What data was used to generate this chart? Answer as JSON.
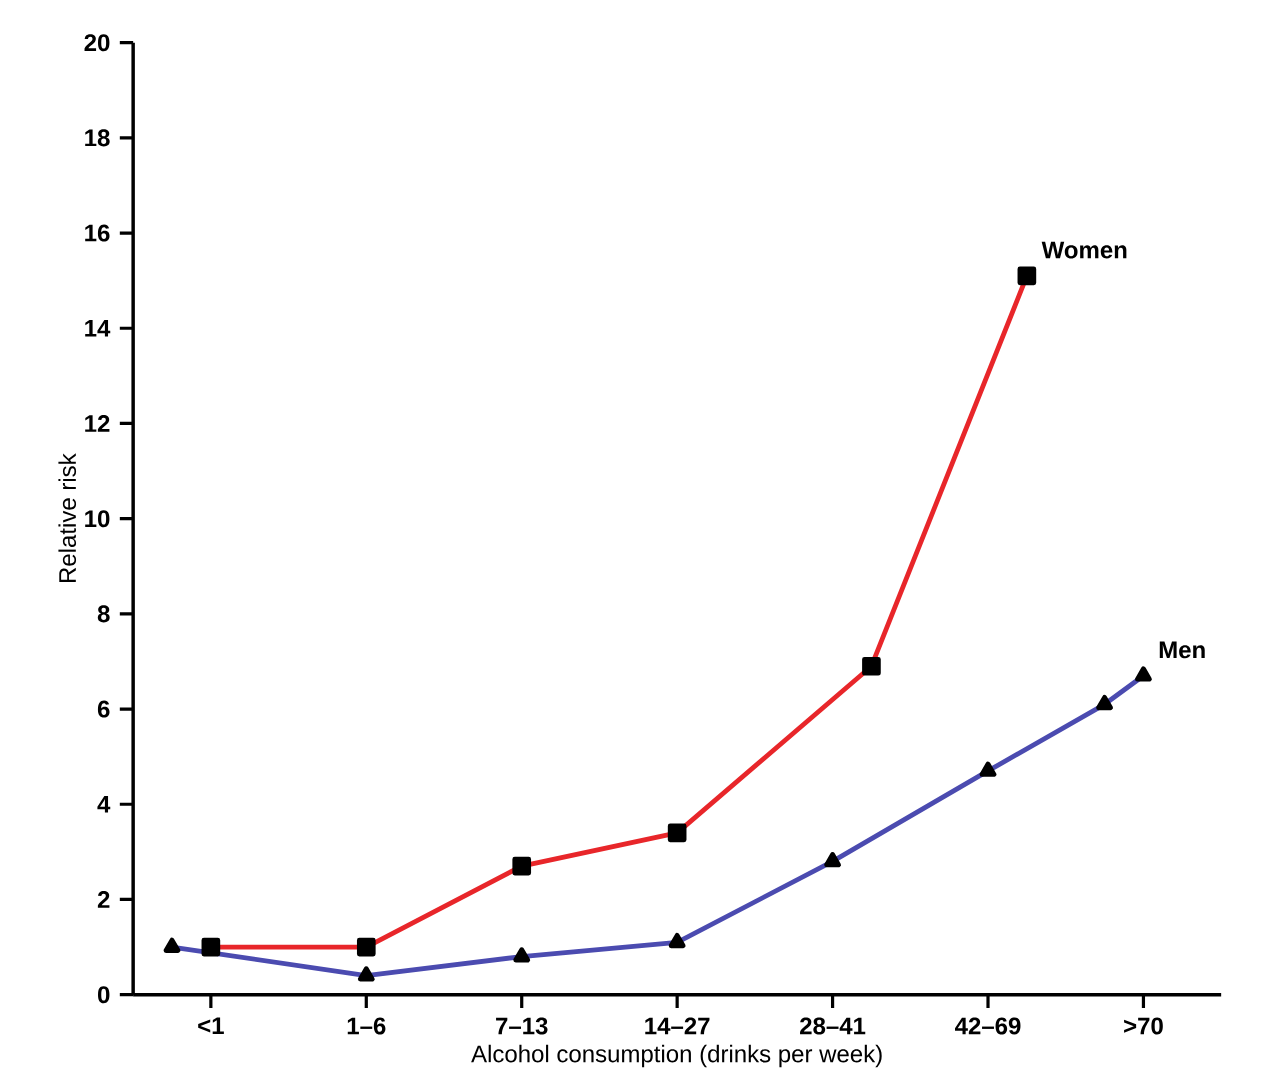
{
  "chart_data": {
    "type": "line",
    "xlabel": "Alcohol consumption (drinks per week)",
    "ylabel": "Relative risk",
    "categories": [
      null,
      "<1",
      null,
      null,
      null,
      "1–6",
      null,
      null,
      null,
      "7–13",
      null,
      null,
      null,
      "14–27",
      null,
      null,
      null,
      "28–41",
      null,
      null,
      null,
      "42–69",
      null,
      null,
      null,
      ">70",
      null
    ],
    "ylim": [
      0,
      20
    ],
    "yticks": [
      0,
      2,
      4,
      6,
      8,
      10,
      12,
      14,
      16,
      18,
      20
    ],
    "line_style": "solid",
    "series": [
      {
        "name": "Women",
        "color": "#e8262a",
        "marker": "square",
        "values": [
          null,
          1.0,
          null,
          null,
          null,
          1.0,
          null,
          null,
          null,
          2.7,
          null,
          null,
          null,
          3.4,
          null,
          null,
          null,
          null,
          6.9,
          null,
          null,
          null,
          15.1,
          null,
          null,
          null,
          null
        ]
      },
      {
        "name": "Men",
        "color": "#4b4bb0",
        "marker": "triangle",
        "values": [
          1.0,
          null,
          null,
          null,
          null,
          0.4,
          null,
          null,
          null,
          0.8,
          null,
          null,
          null,
          1.1,
          null,
          null,
          null,
          2.8,
          null,
          null,
          null,
          4.7,
          null,
          null,
          6.1,
          6.7,
          null
        ]
      }
    ]
  }
}
